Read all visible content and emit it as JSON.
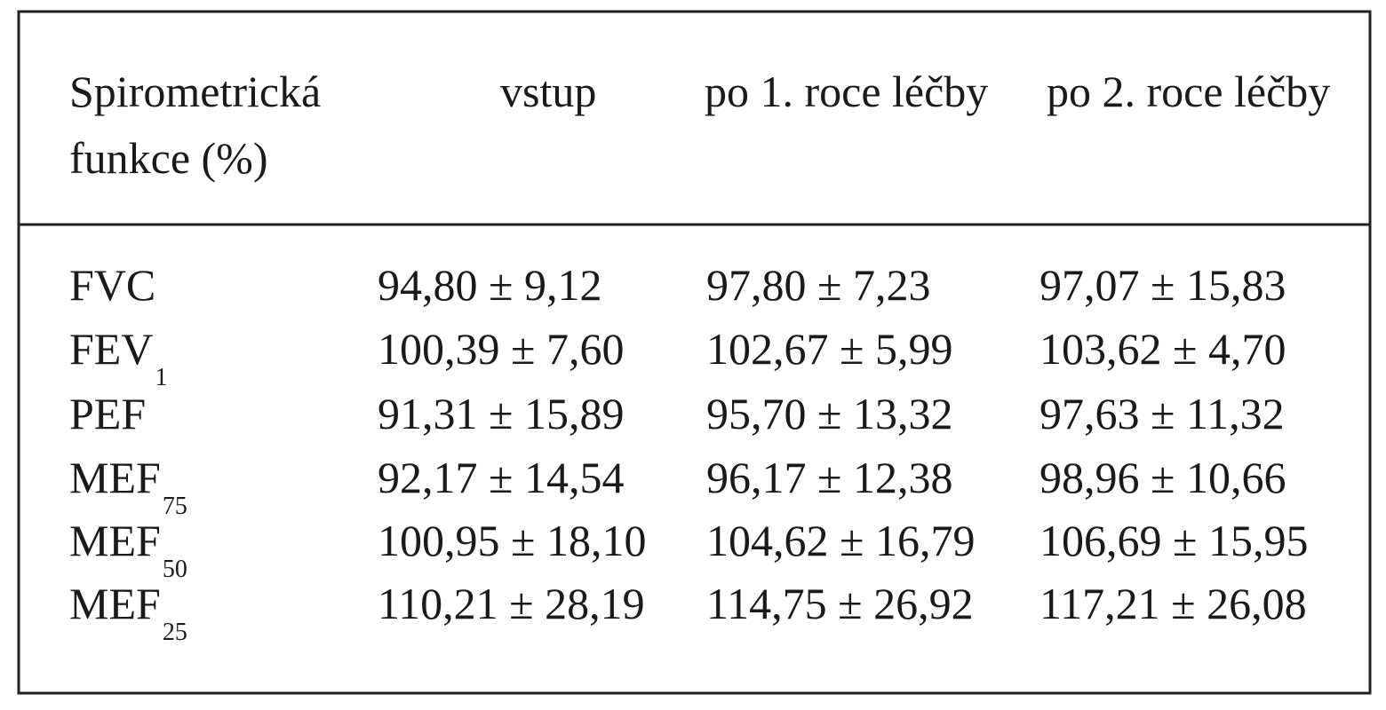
{
  "table": {
    "header": [
      [
        "Spirometrická",
        "funkce (%)"
      ],
      [
        "vstup"
      ],
      [
        "po 1. roce léčby"
      ],
      [
        "po 2. roce léčby"
      ]
    ],
    "rows": [
      [
        {
          "text": "FVC"
        },
        "94,80 ± 9,12",
        "97,80 ± 7,23",
        "97,07 ± 15,83"
      ],
      [
        {
          "text": "FEV",
          "sub": "1"
        },
        "100,39 ± 7,60",
        "102,67 ± 5,99",
        "103,62 ± 4,70"
      ],
      [
        {
          "text": "PEF"
        },
        "91,31 ± 15,89",
        "95,70 ± 13,32",
        "97,63 ± 11,32"
      ],
      [
        {
          "text": "MEF",
          "sub": "75"
        },
        "92,17 ± 14,54",
        "96,17 ± 12,38",
        "98,96 ± 10,66"
      ],
      [
        {
          "text": "MEF",
          "sub": "50"
        },
        "100,95 ± 18,10",
        "104,62 ± 16,79",
        "106,69 ± 15,95"
      ],
      [
        {
          "text": "MEF",
          "sub": "25"
        },
        "110,21 ± 28,19",
        "114,75 ± 26,92",
        "117,21 ± 26,08"
      ]
    ]
  }
}
